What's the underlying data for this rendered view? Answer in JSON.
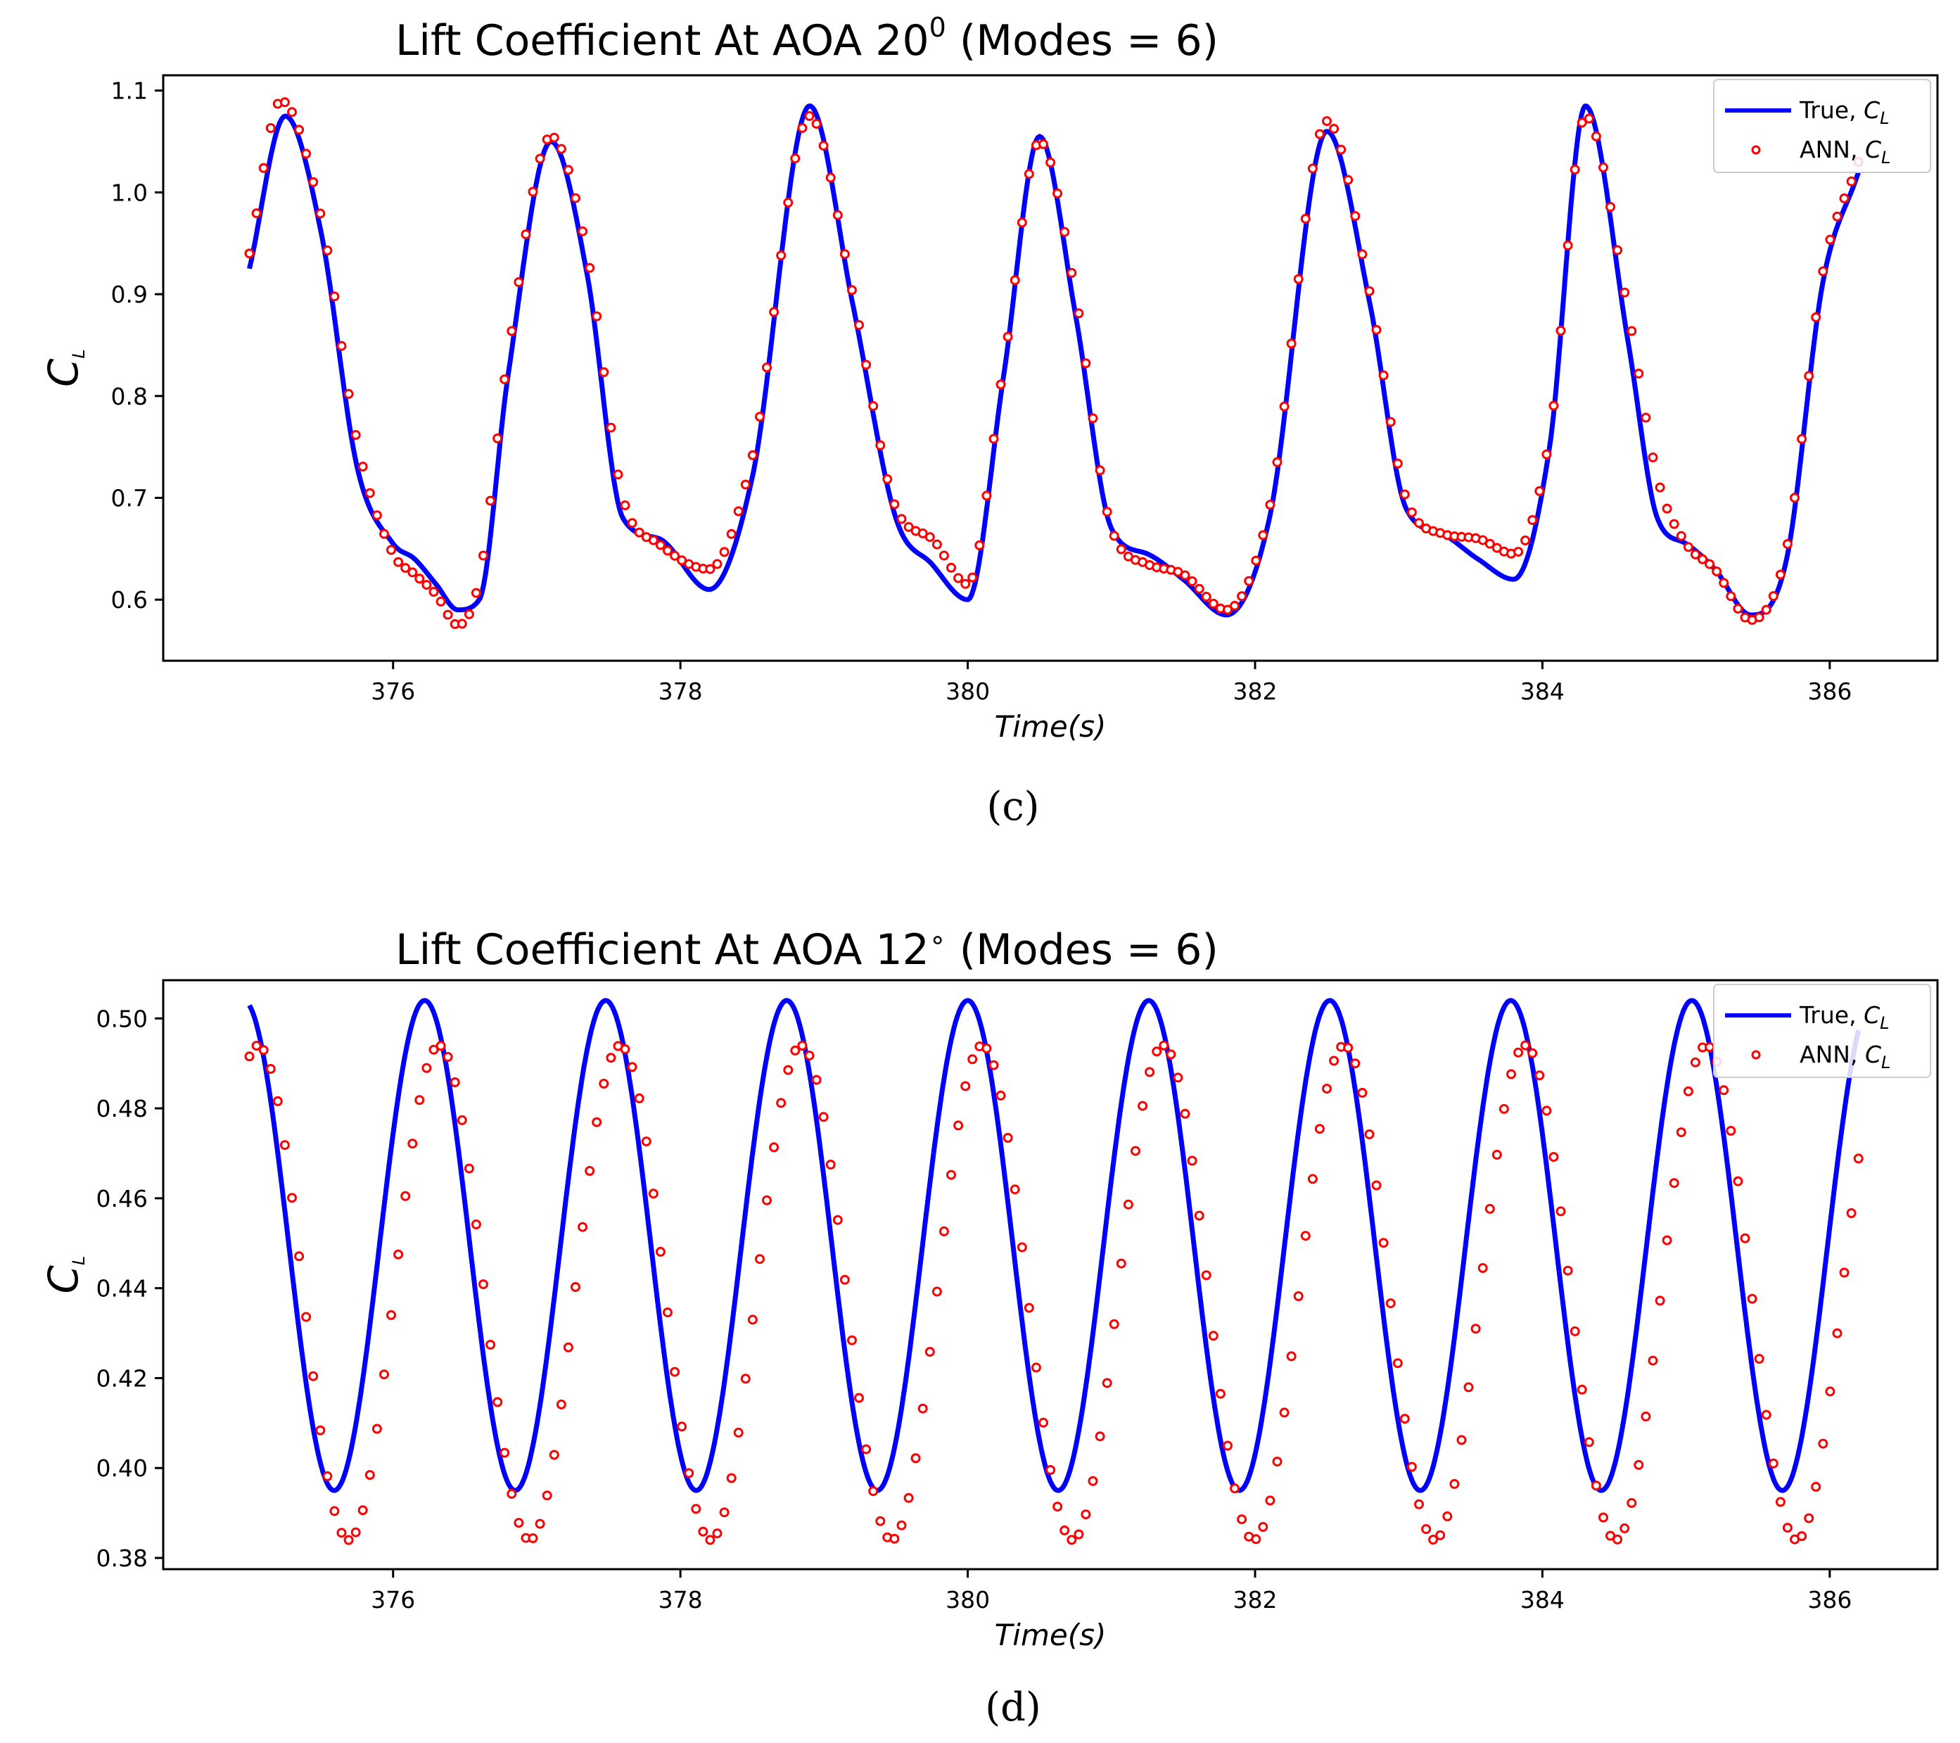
{
  "chart_data": [
    {
      "type": "line",
      "caption": "(c)",
      "title": "Lift Coefficient At AOA 20",
      "title_mark": "0",
      "title_suffix": " (Modes = 6)",
      "xlabel": "Time(s)",
      "ylabel": "C",
      "ylabel_sub": "L",
      "xlim": [
        374.4,
        386.75
      ],
      "ylim": [
        0.54,
        1.115
      ],
      "xticks": [
        376,
        378,
        380,
        382,
        384,
        386
      ],
      "yticks": [
        0.6,
        0.7,
        0.8,
        0.9,
        1.0,
        1.1
      ],
      "ytick_decimals": 1,
      "x_start": 375.0,
      "x_end": 386.2,
      "legend": [
        {
          "name": "True, ",
          "sym": "C",
          "sub": "L",
          "color": "#0000ff",
          "style": "line"
        },
        {
          "name": "ANN, ",
          "sym": "C",
          "sub": "L",
          "color": "#ff0000",
          "style": "markers"
        }
      ],
      "series": [
        {
          "name": "True, C_L",
          "color": "#0000ff",
          "x": [
            375.0,
            375.25,
            375.5,
            375.75,
            376.0,
            376.15,
            376.3,
            376.45,
            376.6,
            376.8,
            377.1,
            377.35,
            377.6,
            377.85,
            378.2,
            378.5,
            378.9,
            379.2,
            379.5,
            379.75,
            380.0,
            380.25,
            380.5,
            380.75,
            381.0,
            381.25,
            381.5,
            381.8,
            382.1,
            382.5,
            382.8,
            383.05,
            383.3,
            383.55,
            383.8,
            384.05,
            384.3,
            384.6,
            384.8,
            385.0,
            385.2,
            385.45,
            385.7,
            385.95,
            386.2
          ],
          "values": [
            0.925,
            1.075,
            0.96,
            0.73,
            0.655,
            0.64,
            0.615,
            0.59,
            0.6,
            0.82,
            1.05,
            0.92,
            0.68,
            0.66,
            0.61,
            0.72,
            1.085,
            0.89,
            0.68,
            0.635,
            0.6,
            0.82,
            1.055,
            0.88,
            0.67,
            0.645,
            0.62,
            0.585,
            0.68,
            1.06,
            0.89,
            0.69,
            0.665,
            0.64,
            0.62,
            0.75,
            1.085,
            0.85,
            0.68,
            0.655,
            0.63,
            0.585,
            0.64,
            0.91,
            1.02
          ]
        },
        {
          "name": "ANN, C_L",
          "color": "#ff0000",
          "x": [
            375.0,
            375.22,
            375.5,
            375.75,
            376.0,
            376.15,
            376.3,
            376.45,
            376.6,
            376.8,
            377.1,
            377.35,
            377.6,
            377.85,
            378.2,
            378.5,
            378.9,
            379.2,
            379.5,
            379.75,
            380.0,
            380.25,
            380.5,
            380.75,
            381.0,
            381.25,
            381.5,
            381.8,
            382.1,
            382.5,
            382.8,
            383.05,
            383.3,
            383.55,
            383.8,
            384.05,
            384.3,
            384.6,
            384.8,
            385.0,
            385.2,
            385.45,
            385.7,
            385.95,
            386.2
          ],
          "values": [
            0.94,
            1.09,
            0.975,
            0.755,
            0.645,
            0.625,
            0.605,
            0.575,
            0.62,
            0.84,
            1.055,
            0.94,
            0.7,
            0.655,
            0.63,
            0.74,
            1.075,
            0.9,
            0.69,
            0.66,
            0.615,
            0.83,
            1.05,
            0.9,
            0.67,
            0.635,
            0.625,
            0.59,
            0.69,
            1.07,
            0.9,
            0.7,
            0.665,
            0.66,
            0.645,
            0.76,
            1.075,
            0.88,
            0.72,
            0.655,
            0.63,
            0.58,
            0.65,
            0.92,
            1.03
          ]
        }
      ]
    },
    {
      "type": "line",
      "caption": "(d)",
      "title": "Lift Coefficient At AOA 12",
      "title_mark": "∘",
      "title_suffix": "  (Modes = 6)",
      "xlabel": "Time(s)",
      "ylabel": "C",
      "ylabel_sub": "L",
      "xlim": [
        374.4,
        386.75
      ],
      "ylim": [
        0.3775,
        0.5085
      ],
      "xticks": [
        376,
        378,
        380,
        382,
        384,
        386
      ],
      "yticks": [
        0.38,
        0.4,
        0.42,
        0.44,
        0.46,
        0.48,
        0.5
      ],
      "ytick_decimals": 2,
      "x_start": 375.0,
      "x_end": 386.2,
      "legend": [
        {
          "name": "True, ",
          "sym": "C",
          "sub": "L",
          "color": "#0000ff",
          "style": "line"
        },
        {
          "name": "ANN, ",
          "sym": "C",
          "sub": "L",
          "color": "#ff0000",
          "style": "markers"
        }
      ],
      "series": [
        {
          "name": "True, C_L",
          "color": "#0000ff",
          "period": 1.26,
          "peak_time": 376.22,
          "mean": 0.4495,
          "amplitude": 0.0545
        },
        {
          "name": "ANN, C_L",
          "color": "#ff0000",
          "period": 1.26,
          "peak_time": 376.32,
          "mean": 0.439,
          "amplitude": 0.055
        }
      ]
    }
  ]
}
